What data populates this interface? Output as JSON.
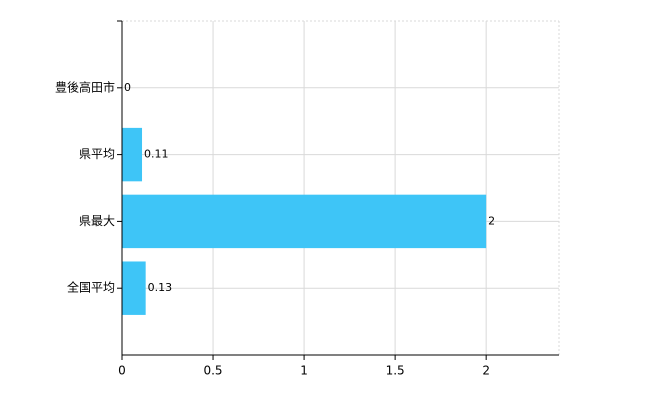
{
  "chart_data": {
    "type": "bar",
    "orientation": "horizontal",
    "categories": [
      "豊後高田市",
      "県平均",
      "県最大",
      "全国平均"
    ],
    "values": [
      0,
      0.11,
      2,
      0.13
    ],
    "color": "#3ec5f7",
    "xlim": [
      0,
      2.4
    ],
    "xticks": [
      0,
      0.5,
      1,
      1.5,
      2
    ],
    "grid": true
  }
}
